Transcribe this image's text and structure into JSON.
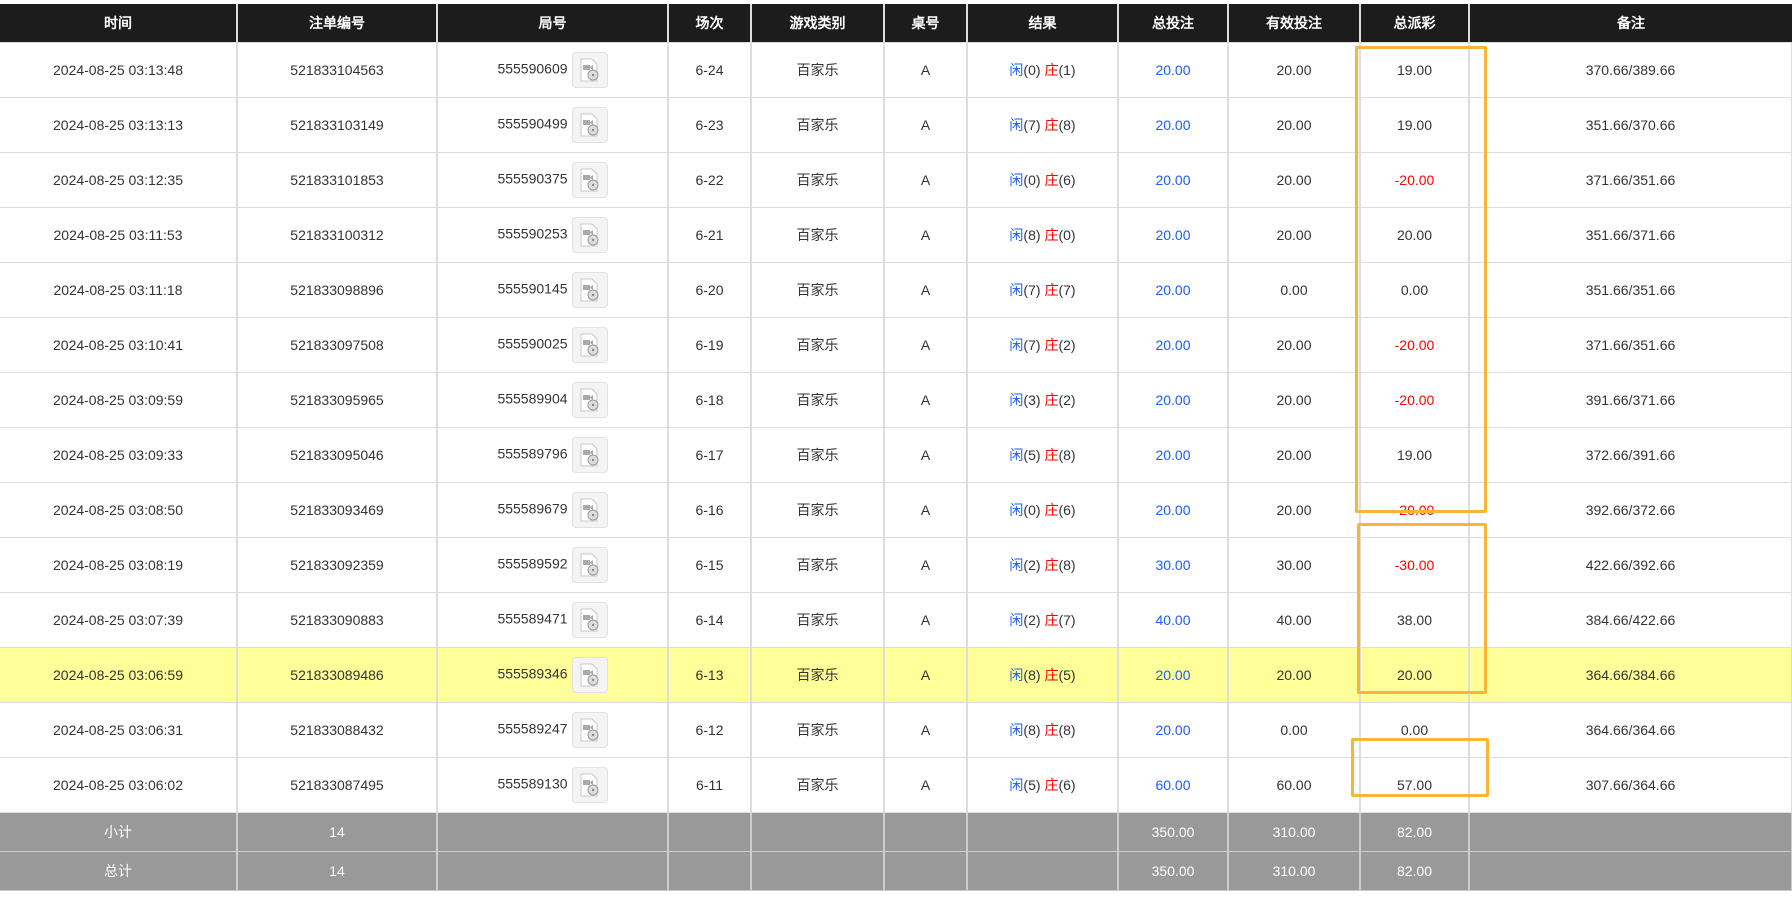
{
  "headers": [
    "时间",
    "注单编号",
    "局号",
    "场次",
    "游戏类别",
    "桌号",
    "结果",
    "总投注",
    "有效投注",
    "总派彩",
    "备注"
  ],
  "result_labels": {
    "player": "闲",
    "banker": "庄"
  },
  "colors": {
    "header_bg": "#1c1c1c",
    "highlight": "#ffff99",
    "positive_bet": "#1a5cff",
    "negative": "#ff0000",
    "annotation_box": "#f9b43a",
    "summary_bg": "#999999"
  },
  "rows": [
    {
      "time": "2024-08-25 03:13:48",
      "bet_id": "521833104563",
      "round": "555590609",
      "shoe": "6-24",
      "game": "百家乐",
      "table": "A",
      "player": "(0)",
      "banker": "(1)",
      "total_bet": "20.00",
      "valid_bet": "20.00",
      "payout": "19.00",
      "note": "370.66/389.66"
    },
    {
      "time": "2024-08-25 03:13:13",
      "bet_id": "521833103149",
      "round": "555590499",
      "shoe": "6-23",
      "game": "百家乐",
      "table": "A",
      "player": "(7)",
      "banker": "(8)",
      "total_bet": "20.00",
      "valid_bet": "20.00",
      "payout": "19.00",
      "note": "351.66/370.66"
    },
    {
      "time": "2024-08-25 03:12:35",
      "bet_id": "521833101853",
      "round": "555590375",
      "shoe": "6-22",
      "game": "百家乐",
      "table": "A",
      "player": "(0)",
      "banker": "(6)",
      "total_bet": "20.00",
      "valid_bet": "20.00",
      "payout": "-20.00",
      "note": "371.66/351.66"
    },
    {
      "time": "2024-08-25 03:11:53",
      "bet_id": "521833100312",
      "round": "555590253",
      "shoe": "6-21",
      "game": "百家乐",
      "table": "A",
      "player": "(8)",
      "banker": "(0)",
      "total_bet": "20.00",
      "valid_bet": "20.00",
      "payout": "20.00",
      "note": "351.66/371.66"
    },
    {
      "time": "2024-08-25 03:11:18",
      "bet_id": "521833098896",
      "round": "555590145",
      "shoe": "6-20",
      "game": "百家乐",
      "table": "A",
      "player": "(7)",
      "banker": "(7)",
      "total_bet": "20.00",
      "valid_bet": "0.00",
      "payout": "0.00",
      "note": "351.66/351.66"
    },
    {
      "time": "2024-08-25 03:10:41",
      "bet_id": "521833097508",
      "round": "555590025",
      "shoe": "6-19",
      "game": "百家乐",
      "table": "A",
      "player": "(7)",
      "banker": "(2)",
      "total_bet": "20.00",
      "valid_bet": "20.00",
      "payout": "-20.00",
      "note": "371.66/351.66"
    },
    {
      "time": "2024-08-25 03:09:59",
      "bet_id": "521833095965",
      "round": "555589904",
      "shoe": "6-18",
      "game": "百家乐",
      "table": "A",
      "player": "(3)",
      "banker": "(2)",
      "total_bet": "20.00",
      "valid_bet": "20.00",
      "payout": "-20.00",
      "note": "391.66/371.66"
    },
    {
      "time": "2024-08-25 03:09:33",
      "bet_id": "521833095046",
      "round": "555589796",
      "shoe": "6-17",
      "game": "百家乐",
      "table": "A",
      "player": "(5)",
      "banker": "(8)",
      "total_bet": "20.00",
      "valid_bet": "20.00",
      "payout": "19.00",
      "note": "372.66/391.66"
    },
    {
      "time": "2024-08-25 03:08:50",
      "bet_id": "521833093469",
      "round": "555589679",
      "shoe": "6-16",
      "game": "百家乐",
      "table": "A",
      "player": "(0)",
      "banker": "(6)",
      "total_bet": "20.00",
      "valid_bet": "20.00",
      "payout": "-20.00",
      "note": "392.66/372.66"
    },
    {
      "time": "2024-08-25 03:08:19",
      "bet_id": "521833092359",
      "round": "555589592",
      "shoe": "6-15",
      "game": "百家乐",
      "table": "A",
      "player": "(2)",
      "banker": "(8)",
      "total_bet": "30.00",
      "valid_bet": "30.00",
      "payout": "-30.00",
      "note": "422.66/392.66"
    },
    {
      "time": "2024-08-25 03:07:39",
      "bet_id": "521833090883",
      "round": "555589471",
      "shoe": "6-14",
      "game": "百家乐",
      "table": "A",
      "player": "(2)",
      "banker": "(7)",
      "total_bet": "40.00",
      "valid_bet": "40.00",
      "payout": "38.00",
      "note": "384.66/422.66"
    },
    {
      "time": "2024-08-25 03:06:59",
      "bet_id": "521833089486",
      "round": "555589346",
      "shoe": "6-13",
      "game": "百家乐",
      "table": "A",
      "player": "(8)",
      "banker": "(5)",
      "total_bet": "20.00",
      "valid_bet": "20.00",
      "payout": "20.00",
      "note": "364.66/384.66",
      "highlighted": true
    },
    {
      "time": "2024-08-25 03:06:31",
      "bet_id": "521833088432",
      "round": "555589247",
      "shoe": "6-12",
      "game": "百家乐",
      "table": "A",
      "player": "(8)",
      "banker": "(8)",
      "total_bet": "20.00",
      "valid_bet": "0.00",
      "payout": "0.00",
      "note": "364.66/364.66"
    },
    {
      "time": "2024-08-25 03:06:02",
      "bet_id": "521833087495",
      "round": "555589130",
      "shoe": "6-11",
      "game": "百家乐",
      "table": "A",
      "player": "(5)",
      "banker": "(6)",
      "total_bet": "60.00",
      "valid_bet": "60.00",
      "payout": "57.00",
      "note": "307.66/364.66"
    }
  ],
  "summary": [
    {
      "label": "小计",
      "count": "14",
      "total_bet": "350.00",
      "valid_bet": "310.00",
      "payout": "82.00"
    },
    {
      "label": "总计",
      "count": "14",
      "total_bet": "350.00",
      "valid_bet": "310.00",
      "payout": "82.00"
    }
  ]
}
